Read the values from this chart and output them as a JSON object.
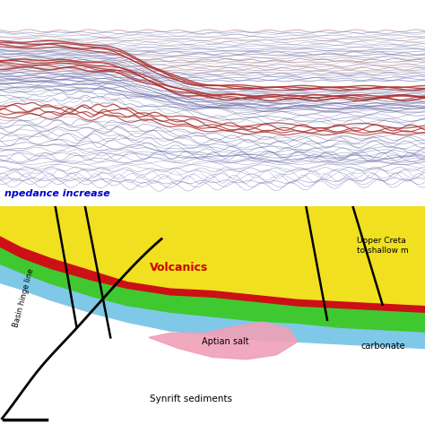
{
  "fig_width": 4.74,
  "fig_height": 4.74,
  "dpi": 100,
  "seismic_bg": "#d8daea",
  "bottom_bg": "#cc5500",
  "yellow_color": "#f0e020",
  "green_color": "#40c830",
  "light_blue_color": "#80c8e8",
  "red_layer_color": "#cc1015",
  "pink_color": "#f0a0b8",
  "volcanics_color": "#cc0000",
  "impedance_color": "#0000cc",
  "fault_color": "#000000",
  "impedance_text": "npedance increase",
  "volcanics_text": "Volcanics",
  "basin_hinge_text": "Basin hinge line",
  "aptian_salt_text": "Aptian salt",
  "synrift_text": "Synrift sediments",
  "upper_creta_text": "Upper Creta\nto shallow m",
  "carbonate_text": "carbonate"
}
